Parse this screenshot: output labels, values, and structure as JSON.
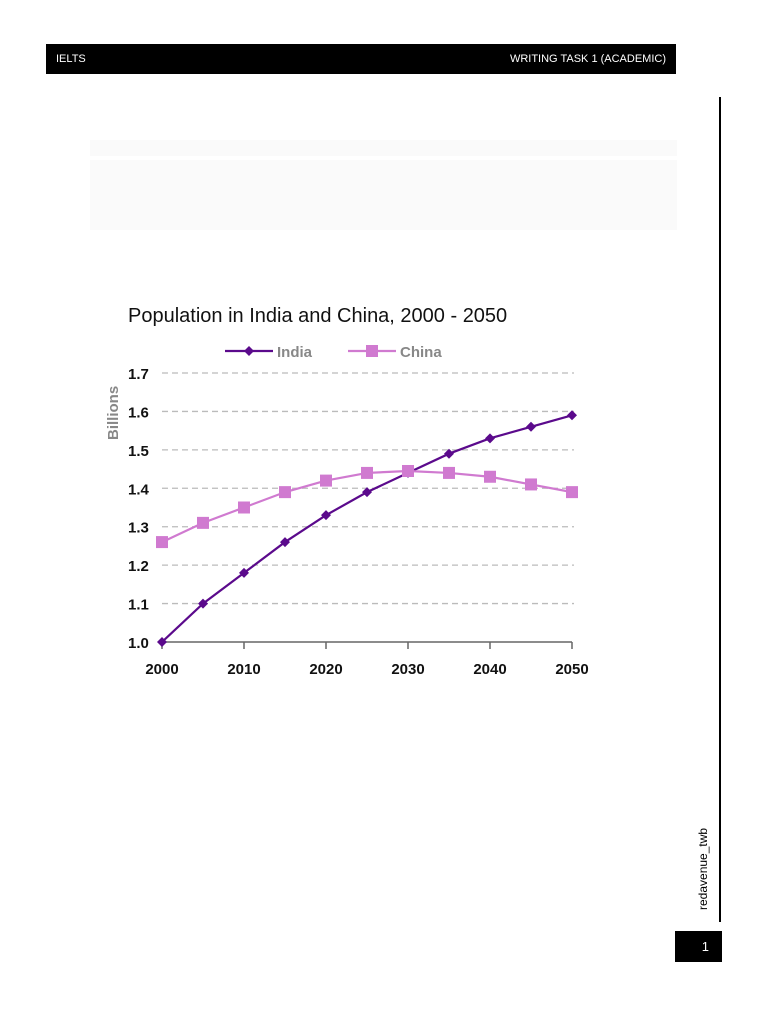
{
  "header": {
    "left_label": "IELTS",
    "right_label": "WRITING TASK 1 (ACADEMIC)"
  },
  "sidebar": {
    "author_tag": "redavenue_twb"
  },
  "footer": {
    "page_number": "1"
  },
  "chart_data": {
    "type": "line",
    "title": "Population in India and China, 2000 - 2050",
    "xlabel": "",
    "ylabel": "Billions",
    "x": [
      2000,
      2005,
      2010,
      2015,
      2020,
      2025,
      2030,
      2035,
      2040,
      2045,
      2050
    ],
    "x_tick_labels": [
      "2000",
      "2010",
      "2020",
      "2030",
      "2040",
      "2050"
    ],
    "y_tick_labels": [
      "1.0",
      "1.1",
      "1.2",
      "1.3",
      "1.4",
      "1.5",
      "1.6",
      "1.7"
    ],
    "ylim": [
      1.0,
      1.7
    ],
    "grid": "horizontal dashed",
    "legend_position": "top",
    "series": [
      {
        "name": "India",
        "marker": "diamond",
        "color": "#5b0a8c",
        "values": [
          1.0,
          1.1,
          1.18,
          1.26,
          1.33,
          1.39,
          1.44,
          1.49,
          1.53,
          1.56,
          1.59
        ]
      },
      {
        "name": "China",
        "marker": "square",
        "color": "#d07ad0",
        "values": [
          1.26,
          1.31,
          1.35,
          1.39,
          1.42,
          1.44,
          1.445,
          1.44,
          1.43,
          1.41,
          1.39
        ]
      }
    ]
  }
}
